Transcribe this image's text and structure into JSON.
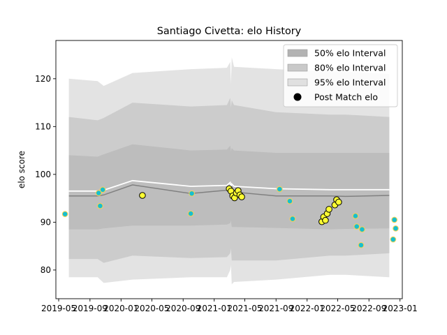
{
  "chart_data": {
    "type": "line",
    "title": "Santiago Civetta: elo History",
    "xlabel": "",
    "ylabel": "elo score",
    "xlim": [
      "2019-04-20",
      "2023-01-10"
    ],
    "ylim": [
      74,
      128
    ],
    "x_ticks": [
      "2019-05",
      "2019-09",
      "2020-01",
      "2020-05",
      "2020-09",
      "2021-01",
      "2021-05",
      "2021-09",
      "2022-01",
      "2022-05",
      "2022-09",
      "2023-01"
    ],
    "y_ticks": [
      80,
      90,
      100,
      110,
      120
    ],
    "grid": false,
    "legend_position": "top-right",
    "colors": {
      "band95": "#e3e3e3",
      "band80": "#cccccc",
      "band50": "#bdbdbd",
      "median": "#808080",
      "mean": "#ffffff",
      "other_points": "#17becf",
      "other_points_edge": "#ffd24a",
      "match_points": "#ffff33",
      "match_points_edge": "#000000"
    },
    "legend": [
      {
        "label": "50% elo Interval",
        "kind": "band50"
      },
      {
        "label": "80% elo Interval",
        "kind": "band80"
      },
      {
        "label": "95% elo Interval",
        "kind": "band95"
      },
      {
        "label": "Post Match elo",
        "kind": "marker"
      }
    ],
    "bands": {
      "x": [
        "2019-06-10",
        "2019-10-01",
        "2019-10-25",
        "2020-02-15",
        "2020-10-01",
        "2021-02-20",
        "2021-03-05",
        "2021-03-08",
        "2021-03-11",
        "2021-03-20",
        "2021-09-01",
        "2022-04-01",
        "2022-06-01",
        "2022-11-20"
      ],
      "p95_upper": [
        120,
        119.5,
        118.5,
        121.2,
        122,
        122.3,
        123.5,
        119.0,
        124.5,
        122.5,
        122.0,
        121.5,
        121.5,
        121.0
      ],
      "p95_lower": [
        78.5,
        78.5,
        77.3,
        78.0,
        78.5,
        78.5,
        80.0,
        81.0,
        77.0,
        77.5,
        78.0,
        79.0,
        79.0,
        78.5
      ],
      "p80_upper": [
        112,
        111.3,
        111.8,
        115.0,
        114.2,
        114.5,
        116.0,
        114.0,
        115.5,
        114.5,
        113.0,
        112.5,
        112.5,
        112.0
      ],
      "p80_lower": [
        82.3,
        82.3,
        81.5,
        83.0,
        82.5,
        82.7,
        83.5,
        84.5,
        82.0,
        82.0,
        82.0,
        83.0,
        83.0,
        83.5
      ],
      "p50_upper": [
        104,
        103.7,
        104.2,
        106.3,
        105.0,
        105.2,
        106.0,
        104.8,
        105.5,
        105.0,
        104.5,
        104.5,
        104.5,
        104.5
      ],
      "p50_lower": [
        88.5,
        88.5,
        88.7,
        89.3,
        89.3,
        89.5,
        89.8,
        90.3,
        89.0,
        89.0,
        88.8,
        88.5,
        88.6,
        88.7
      ],
      "median": [
        95.5,
        95.5,
        95.7,
        97.8,
        96.0,
        96.7,
        97.0,
        96.5,
        96.8,
        96.3,
        95.5,
        95.5,
        95.4,
        95.6
      ],
      "mean": [
        96.5,
        96.5,
        96.7,
        98.7,
        97.5,
        97.7,
        98.3,
        97.2,
        98.0,
        97.5,
        97.0,
        96.8,
        96.8,
        96.8
      ]
    },
    "series": [
      {
        "role": "other",
        "points": [
          {
            "x": "2019-05-26",
            "y": 91.7
          },
          {
            "x": "2019-10-05",
            "y": 96.1
          },
          {
            "x": "2019-10-11",
            "y": 93.4
          },
          {
            "x": "2019-10-21",
            "y": 96.8
          },
          {
            "x": "2020-10-05",
            "y": 96.0
          },
          {
            "x": "2020-10-01",
            "y": 91.8
          },
          {
            "x": "2021-09-15",
            "y": 96.9
          },
          {
            "x": "2021-10-25",
            "y": 94.4
          },
          {
            "x": "2021-11-05",
            "y": 90.7
          },
          {
            "x": "2022-07-10",
            "y": 91.3
          },
          {
            "x": "2022-07-15",
            "y": 89.1
          },
          {
            "x": "2022-08-05",
            "y": 88.5
          },
          {
            "x": "2022-08-01",
            "y": 85.2
          },
          {
            "x": "2022-12-05",
            "y": 86.4
          },
          {
            "x": "2022-12-10",
            "y": 90.5
          },
          {
            "x": "2022-12-15",
            "y": 88.7
          }
        ]
      },
      {
        "role": "post-match",
        "points": [
          {
            "x": "2020-03-25",
            "y": 95.6
          },
          {
            "x": "2021-03-01",
            "y": 97.0
          },
          {
            "x": "2021-03-08",
            "y": 96.5
          },
          {
            "x": "2021-03-15",
            "y": 95.5
          },
          {
            "x": "2021-03-22",
            "y": 95.1
          },
          {
            "x": "2021-03-29",
            "y": 96.1
          },
          {
            "x": "2021-04-05",
            "y": 96.6
          },
          {
            "x": "2021-04-12",
            "y": 95.7
          },
          {
            "x": "2021-04-19",
            "y": 95.3
          },
          {
            "x": "2022-02-28",
            "y": 90.1
          },
          {
            "x": "2022-03-07",
            "y": 91.1
          },
          {
            "x": "2022-03-14",
            "y": 90.4
          },
          {
            "x": "2022-03-21",
            "y": 91.8
          },
          {
            "x": "2022-03-28",
            "y": 92.7
          },
          {
            "x": "2022-04-20",
            "y": 93.6
          },
          {
            "x": "2022-04-27",
            "y": 94.7
          },
          {
            "x": "2022-05-05",
            "y": 94.2
          }
        ]
      }
    ]
  }
}
